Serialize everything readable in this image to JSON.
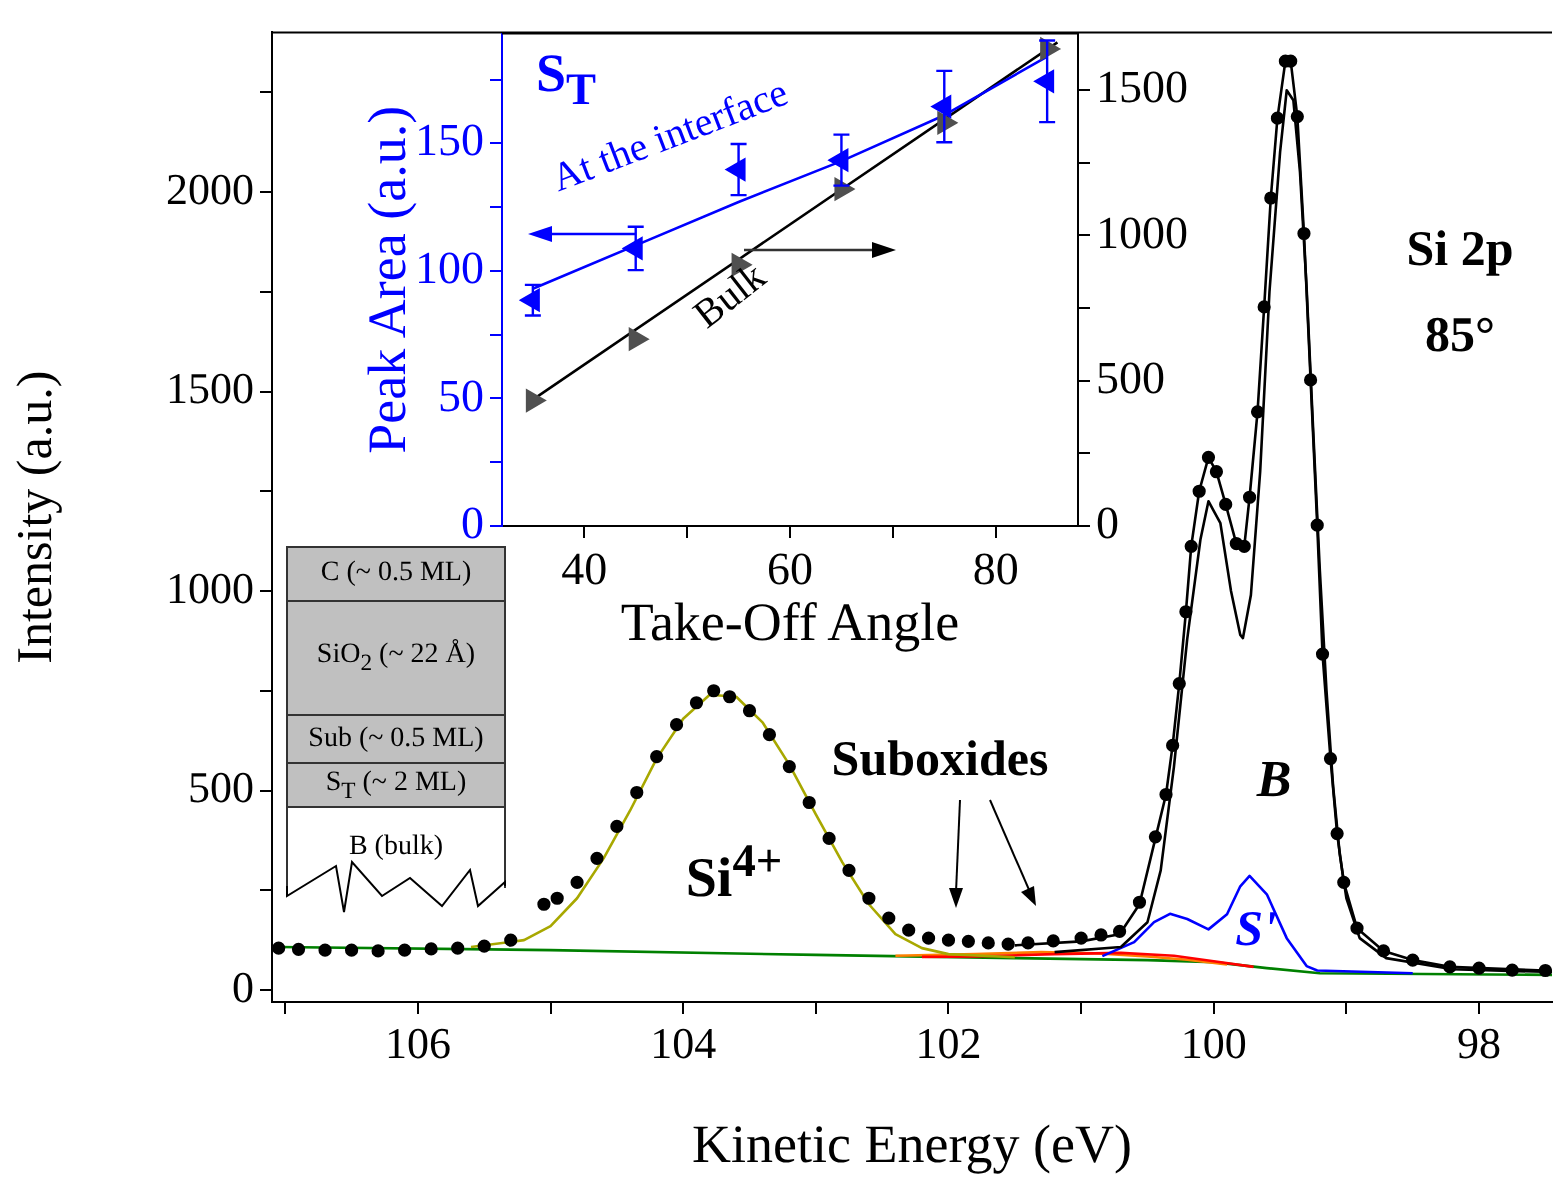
{
  "chart_data": [
    {
      "type": "line",
      "xlabel": "Kinetic Energy (eV)",
      "ylabel": "Intensity (a.u.)",
      "xlim": [
        107.1,
        97.45
      ],
      "ylim": [
        -30,
        2400
      ],
      "xticks": [
        {
          "value": 107,
          "label": null
        },
        106,
        {
          "value": 105,
          "label": null
        },
        104,
        {
          "value": 103,
          "label": null
        },
        102,
        {
          "value": 101,
          "label": null
        },
        100,
        {
          "value": 99,
          "label": null
        },
        98
      ],
      "yticks": [
        0,
        {
          "value": 250,
          "label": null
        },
        500,
        {
          "value": 750,
          "label": null
        },
        1000,
        {
          "value": 1250,
          "label": null
        },
        1500,
        {
          "value": 1750,
          "label": null
        },
        2000,
        {
          "value": 2250,
          "label": null
        }
      ],
      "annotations": [
        "Si 2p",
        "85°",
        "Suboxides",
        "C (~ 0.5 ML)",
        "SiO$_{2}$ (~ 22 Å)",
        "Sub (~ 0.5 ML)",
        "S$_{T}$ (~ 2 ML)",
        "B (bulk)",
        "Si$^{4+}$"
      ],
      "series": [
        {
          "type": "scatter",
          "marker": "circle",
          "color": "#000000",
          "x": [
            107.05,
            106.9,
            106.7,
            106.5,
            106.3,
            106.1,
            105.9,
            105.7,
            105.5,
            105.3,
            105.05,
            104.95,
            104.8,
            104.65,
            104.5,
            104.35,
            104.2,
            104.05,
            103.9,
            103.77,
            103.65,
            103.5,
            103.35,
            103.2,
            103.05,
            102.9,
            102.75,
            102.6,
            102.45,
            102.3,
            102.15,
            102.0,
            101.85,
            101.7,
            101.55,
            101.4,
            101.21,
            101.0,
            100.85,
            100.71,
            100.56,
            100.44,
            100.36,
            100.31,
            100.26,
            100.21,
            100.17,
            100.11,
            100.04,
            99.98,
            99.91,
            99.83,
            99.77,
            99.73,
            99.67,
            99.62,
            99.57,
            99.52,
            99.46,
            99.42,
            99.37,
            99.32,
            99.27,
            99.22,
            99.18,
            99.12,
            99.07,
            99.02,
            98.92,
            98.72,
            98.5,
            98.22,
            98.0,
            97.75,
            97.5
          ],
          "values": [
            105,
            102,
            100,
            100,
            98,
            100,
            103,
            105,
            110,
            125,
            215,
            230,
            270,
            330,
            410,
            495,
            585,
            665,
            720,
            750,
            735,
            700,
            640,
            560,
            470,
            380,
            300,
            230,
            180,
            150,
            130,
            125,
            122,
            118,
            115,
            118,
            123,
            130,
            138,
            147,
            220,
            384,
            490,
            613,
            768,
            948,
            1112,
            1250,
            1335,
            1299,
            1217,
            1119,
            1112,
            1235,
            1449,
            1712,
            1985,
            2185,
            2328,
            2328,
            2189,
            1896,
            1529,
            1165,
            842,
            580,
            392,
            270,
            155,
            98,
            75,
            58,
            55,
            50,
            49
          ]
        },
        {
          "color": "#000000",
          "x": [
            101.5,
            101.0,
            100.71,
            100.56,
            100.44,
            100.36,
            100.31,
            100.26,
            100.21,
            100.17,
            100.11,
            100.04,
            99.98,
            99.91,
            99.83,
            99.77,
            99.73,
            99.67,
            99.62,
            99.57,
            99.52,
            99.46,
            99.42,
            99.37,
            99.32,
            99.27,
            99.22,
            99.18,
            99.12,
            99.07,
            99.02,
            98.92,
            98.72,
            98.5,
            98.22,
            97.45
          ],
          "values": [
            112,
            122,
            140,
            215,
            380,
            490,
            613,
            768,
            948,
            1112,
            1250,
            1335,
            1299,
            1217,
            1119,
            1112,
            1235,
            1449,
            1712,
            1985,
            2185,
            2328,
            2328,
            2189,
            1896,
            1529,
            1165,
            842,
            580,
            392,
            270,
            155,
            98,
            75,
            58,
            48
          ]
        },
        {
          "name": "B",
          "color": "#000000",
          "x": [
            101.2,
            100.7,
            100.5,
            100.4,
            100.3,
            100.2,
            100.1,
            100.04,
            99.95,
            99.87,
            99.8,
            99.78,
            99.72,
            99.65,
            99.58,
            99.5,
            99.45,
            99.4,
            99.35,
            99.3,
            99.25,
            99.2,
            99.15,
            99.1,
            99.05,
            99.0,
            98.9,
            98.7,
            98.2,
            97.45
          ],
          "values": [
            95,
            108,
            170,
            300,
            560,
            880,
            1130,
            1225,
            1170,
            1000,
            890,
            882,
            990,
            1300,
            1750,
            2100,
            2255,
            2230,
            2050,
            1760,
            1400,
            1050,
            750,
            510,
            340,
            230,
            130,
            80,
            52,
            45
          ]
        },
        {
          "name": "S'",
          "color": "#0000ff",
          "x": [
            100.84,
            100.6,
            100.45,
            100.33,
            100.2,
            100.04,
            99.9,
            99.8,
            99.73,
            99.6,
            99.45,
            99.3,
            99.22,
            98.5
          ],
          "values": [
            85,
            120,
            170,
            191,
            178,
            152,
            190,
            260,
            286,
            240,
            130,
            60,
            49,
            42
          ]
        },
        {
          "color": "#a8a800",
          "x": [
            105.6,
            105.2,
            105.0,
            104.8,
            104.6,
            104.4,
            104.2,
            104.0,
            103.8,
            103.6,
            103.4,
            103.2,
            103.0,
            102.8,
            102.6,
            102.4,
            102.2,
            102.0,
            101.5
          ],
          "values": [
            108,
            125,
            160,
            230,
            330,
            450,
            580,
            680,
            740,
            735,
            670,
            565,
            440,
            320,
            215,
            140,
            105,
            90,
            82
          ]
        },
        {
          "color": "#ff0000",
          "x": [
            102.2,
            101.8,
            101.2,
            100.7,
            100.3,
            100.0,
            99.7
          ],
          "values": [
            83,
            84,
            90,
            93,
            86,
            72,
            58
          ]
        },
        {
          "color": "#ff8000",
          "x": [
            102.4,
            101.8,
            101.3,
            100.9,
            100.5,
            100.2,
            99.9
          ],
          "values": [
            86,
            90,
            95,
            92,
            84,
            76,
            64
          ]
        },
        {
          "color": "#008000",
          "x": [
            107.05,
            105.0,
            103.0,
            101.5,
            100.5,
            100.0,
            99.6,
            99.2,
            97.45
          ],
          "values": [
            108,
            100,
            88,
            80,
            75,
            70,
            55,
            42,
            38
          ]
        }
      ]
    },
    {
      "type": "scatter",
      "xlabel": "Take-Off Angle",
      "ylabel": "Peak Area (a.u.)",
      "xlim": [
        32,
        88
      ],
      "ylim": [
        0,
        193
      ],
      "y2lim": [
        0,
        1695
      ],
      "xticks": [
        40,
        {
          "value": 50,
          "label": null
        },
        60,
        {
          "value": 70,
          "label": null
        },
        80
      ],
      "yticks": [
        0,
        {
          "value": 25,
          "label": null
        },
        50,
        {
          "value": 75,
          "label": null
        },
        100,
        {
          "value": 125,
          "label": null
        },
        150,
        {
          "value": 175,
          "label": null
        }
      ],
      "y2ticks": [
        0,
        {
          "value": 250,
          "label": null
        },
        500,
        {
          "value": 750,
          "label": null
        },
        1000,
        {
          "value": 1250,
          "label": null
        },
        1500
      ],
      "annotations": [
        "At the interface"
      ],
      "series": [
        {
          "name": "S$_{T}$",
          "marker": "triangle",
          "color": "#0000ff",
          "x": [
            35,
            45,
            55,
            65,
            75,
            85
          ],
          "values": [
            88.5,
            108.8,
            139.7,
            143.4,
            164.4,
            174.3
          ],
          "errors": [
            6,
            8.5,
            10,
            10,
            14,
            16
          ]
        },
        {
          "type": "line",
          "color": "#0000ff",
          "x": [
            35,
            45,
            55,
            65,
            75,
            85
          ],
          "values": [
            93,
            110,
            127,
            143,
            161,
            184
          ]
        },
        {
          "name": "Bulk",
          "marker": "triangle",
          "axis": "y2",
          "color": "#505050",
          "x": [
            35,
            45,
            55,
            65,
            75,
            85
          ],
          "values": [
            432,
            643,
            899,
            1160,
            1388,
            1642
          ]
        },
        {
          "type": "line",
          "axis": "y2",
          "color": "#000000",
          "x": [
            35,
            86
          ],
          "values": [
            435,
            1665
          ]
        }
      ]
    }
  ]
}
